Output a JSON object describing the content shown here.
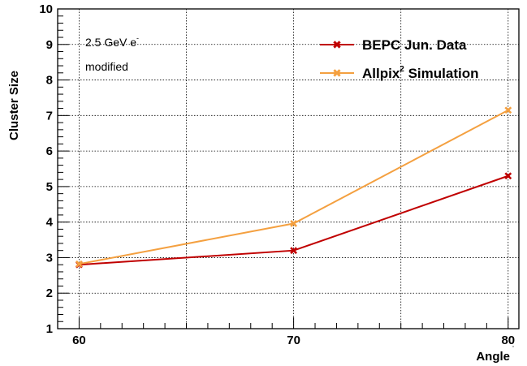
{
  "chart_data": {
    "type": "line",
    "title": "",
    "xlabel": "Angle",
    "xlabel_superscript": "°",
    "ylabel": "Cluster Size",
    "x": [
      60,
      70,
      80
    ],
    "xlim": [
      59,
      80.5
    ],
    "ylim": [
      1,
      10
    ],
    "x_ticks": [
      "60",
      "70",
      "80"
    ],
    "y_ticks": [
      "1",
      "2",
      "3",
      "4",
      "5",
      "6",
      "7",
      "8",
      "9",
      "10"
    ],
    "grid": true,
    "legend_position": "top-right",
    "annotation": {
      "line1": "2.5 GeV e",
      "line1_superscript": "-",
      "line2": "modified"
    },
    "series": [
      {
        "name": "BEPC Jun. Data",
        "name_superscript": "",
        "name_suffix": "",
        "color": "#c00000",
        "values": [
          2.8,
          3.2,
          5.3
        ]
      },
      {
        "name": "Allpix",
        "name_superscript": "2",
        "name_suffix": " Simulation",
        "color": "#f4a040",
        "values": [
          2.82,
          3.96,
          7.15
        ]
      }
    ]
  }
}
